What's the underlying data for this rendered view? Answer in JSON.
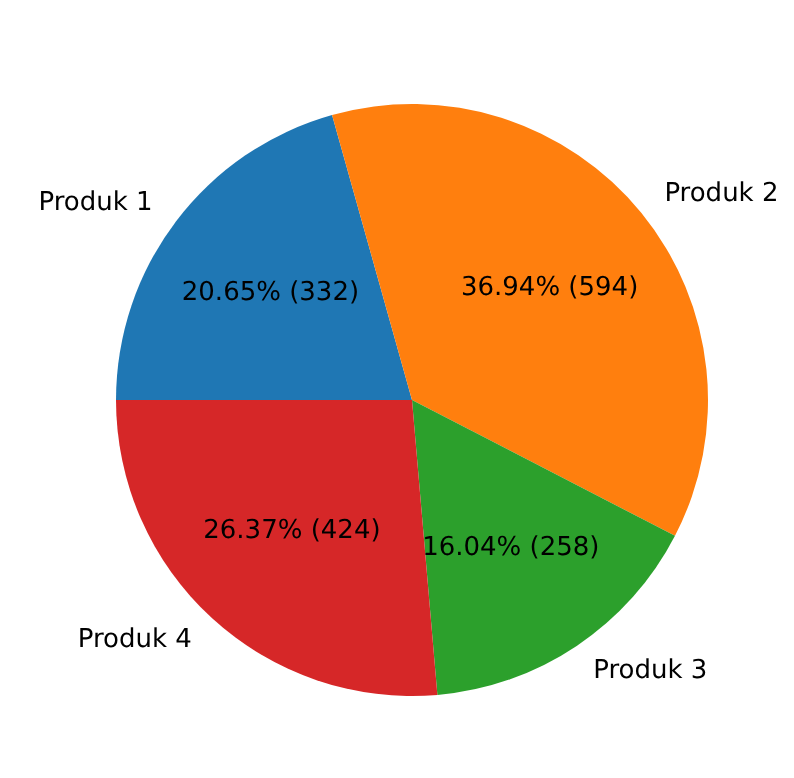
{
  "chart_data": {
    "type": "pie",
    "categories": [
      "Produk 1",
      "Produk 2",
      "Produk 3",
      "Produk 4"
    ],
    "values": [
      332,
      594,
      258,
      424
    ],
    "colors": [
      "#1f77b4",
      "#ff7f0e",
      "#2ca02c",
      "#d62728"
    ],
    "value_labels": [
      "20.65% (332)",
      "36.94% (594)",
      "16.04% (258)",
      "26.37% (424)"
    ]
  }
}
